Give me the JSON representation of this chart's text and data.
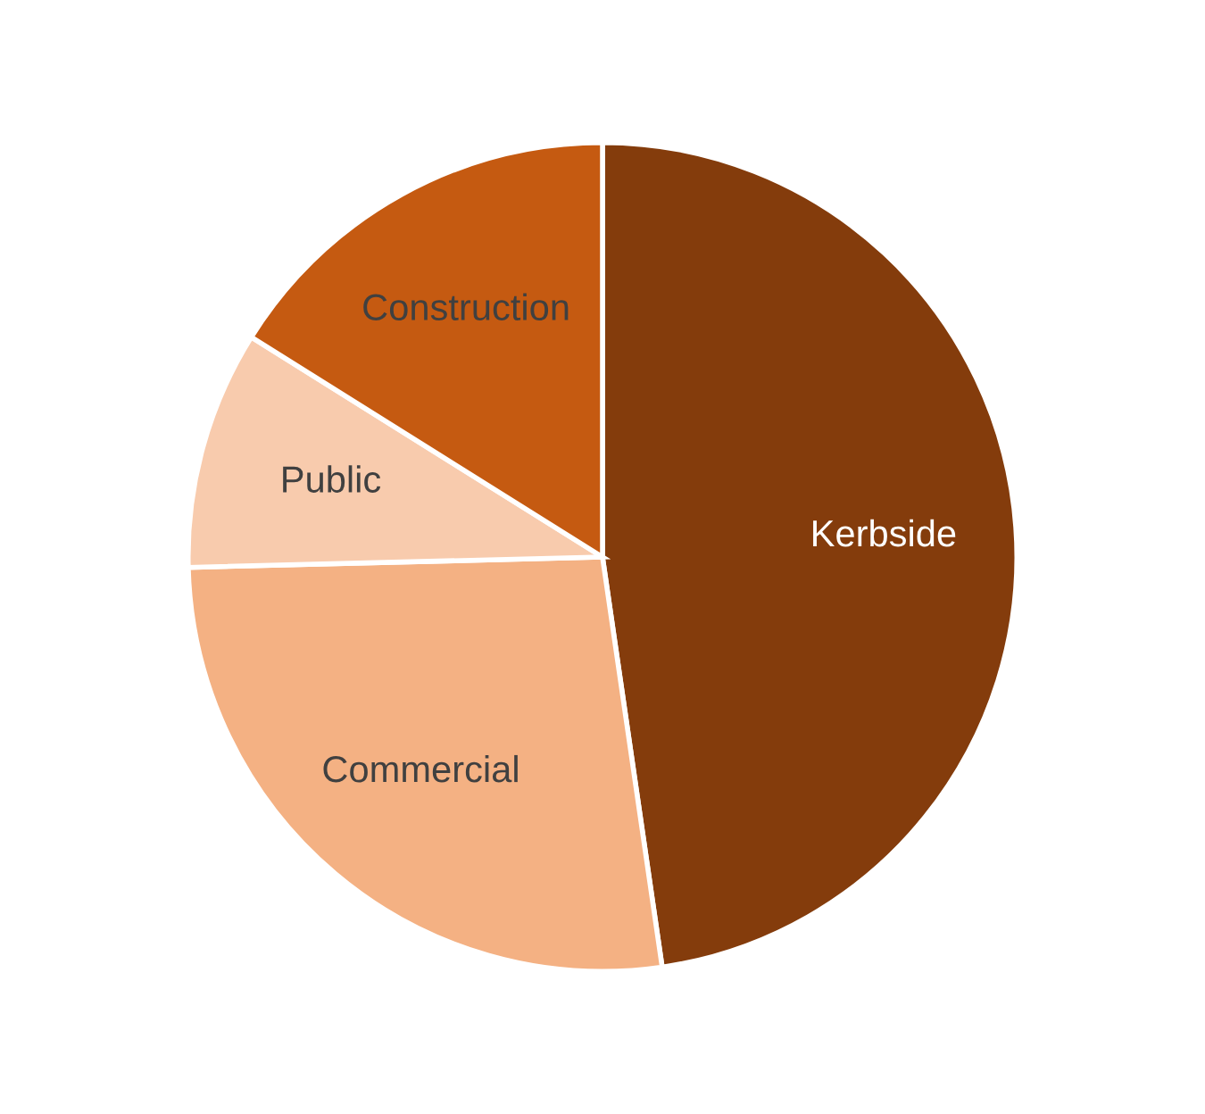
{
  "chart_data": {
    "type": "pie",
    "categories": [
      "Kerbside",
      "Commercial",
      "Public",
      "Construction"
    ],
    "values": [
      47.7,
      26.9,
      9.3,
      16.1
    ],
    "colors": [
      "#843c0c",
      "#f4b183",
      "#f8cbad",
      "#c55a11"
    ]
  }
}
